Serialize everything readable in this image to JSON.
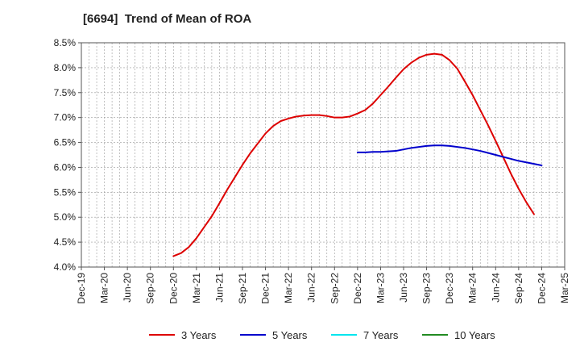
{
  "chart_data": {
    "type": "line",
    "title": "[6694]  Trend of Mean of ROA",
    "xlabel": "",
    "ylabel": "",
    "x_tick_labels": [
      "Dec-19",
      "Mar-20",
      "Jun-20",
      "Sep-20",
      "Dec-20",
      "Mar-21",
      "Jun-21",
      "Sep-21",
      "Dec-21",
      "Mar-22",
      "Jun-22",
      "Sep-22",
      "Dec-22",
      "Mar-23",
      "Jun-23",
      "Sep-23",
      "Dec-23",
      "Mar-24",
      "Jun-24",
      "Sep-24",
      "Dec-24",
      "Mar-25"
    ],
    "y_tick_labels": [
      "4.0%",
      "4.5%",
      "5.0%",
      "5.5%",
      "6.0%",
      "6.5%",
      "7.0%",
      "7.5%",
      "8.0%",
      "8.5%"
    ],
    "ylim": [
      4.0,
      8.5
    ],
    "y_unit": "%",
    "grid": true,
    "legend_position": "bottom",
    "series": [
      {
        "name": "3 Years",
        "color": "#dd0000",
        "points": [
          [
            "Dec-20",
            4.22
          ],
          [
            "Jan-21",
            4.28
          ],
          [
            "Feb-21",
            4.4
          ],
          [
            "Mar-21",
            4.58
          ],
          [
            "Apr-21",
            4.8
          ],
          [
            "May-21",
            5.02
          ],
          [
            "Jun-21",
            5.28
          ],
          [
            "Jul-21",
            5.55
          ],
          [
            "Aug-21",
            5.8
          ],
          [
            "Sep-21",
            6.05
          ],
          [
            "Oct-21",
            6.28
          ],
          [
            "Nov-21",
            6.48
          ],
          [
            "Dec-21",
            6.68
          ],
          [
            "Jan-22",
            6.83
          ],
          [
            "Feb-22",
            6.93
          ],
          [
            "Mar-22",
            6.98
          ],
          [
            "Apr-22",
            7.02
          ],
          [
            "May-22",
            7.04
          ],
          [
            "Jun-22",
            7.05
          ],
          [
            "Jul-22",
            7.05
          ],
          [
            "Aug-22",
            7.03
          ],
          [
            "Sep-22",
            7.0
          ],
          [
            "Oct-22",
            7.0
          ],
          [
            "Nov-22",
            7.02
          ],
          [
            "Dec-22",
            7.08
          ],
          [
            "Jan-23",
            7.15
          ],
          [
            "Feb-23",
            7.28
          ],
          [
            "Mar-23",
            7.45
          ],
          [
            "Apr-23",
            7.62
          ],
          [
            "May-23",
            7.8
          ],
          [
            "Jun-23",
            7.97
          ],
          [
            "Jul-23",
            8.1
          ],
          [
            "Aug-23",
            8.2
          ],
          [
            "Sep-23",
            8.26
          ],
          [
            "Oct-23",
            8.28
          ],
          [
            "Nov-23",
            8.26
          ],
          [
            "Dec-23",
            8.15
          ],
          [
            "Jan-24",
            7.98
          ],
          [
            "Feb-24",
            7.72
          ],
          [
            "Mar-24",
            7.45
          ],
          [
            "Apr-24",
            7.15
          ],
          [
            "May-24",
            6.85
          ],
          [
            "Jun-24",
            6.53
          ],
          [
            "Jul-24",
            6.2
          ],
          [
            "Aug-24",
            5.87
          ],
          [
            "Sep-24",
            5.57
          ],
          [
            "Oct-24",
            5.3
          ],
          [
            "Nov-24",
            5.06
          ]
        ]
      },
      {
        "name": "5 Years",
        "color": "#0000cc",
        "points": [
          [
            "Dec-22",
            6.3
          ],
          [
            "Jan-23",
            6.3
          ],
          [
            "Feb-23",
            6.31
          ],
          [
            "Mar-23",
            6.31
          ],
          [
            "Apr-23",
            6.32
          ],
          [
            "May-23",
            6.33
          ],
          [
            "Jun-23",
            6.36
          ],
          [
            "Jul-23",
            6.39
          ],
          [
            "Aug-23",
            6.41
          ],
          [
            "Sep-23",
            6.43
          ],
          [
            "Oct-23",
            6.44
          ],
          [
            "Nov-23",
            6.44
          ],
          [
            "Dec-23",
            6.43
          ],
          [
            "Jan-24",
            6.41
          ],
          [
            "Feb-24",
            6.39
          ],
          [
            "Mar-24",
            6.36
          ],
          [
            "Apr-24",
            6.33
          ],
          [
            "May-24",
            6.29
          ],
          [
            "Jun-24",
            6.25
          ],
          [
            "Jul-24",
            6.21
          ],
          [
            "Aug-24",
            6.17
          ],
          [
            "Sep-24",
            6.13
          ],
          [
            "Oct-24",
            6.1
          ],
          [
            "Nov-24",
            6.07
          ],
          [
            "Dec-24",
            6.04
          ]
        ]
      },
      {
        "name": "7 Years",
        "color": "#00e5ee",
        "points": []
      },
      {
        "name": "10 Years",
        "color": "#228b22",
        "points": []
      }
    ]
  }
}
